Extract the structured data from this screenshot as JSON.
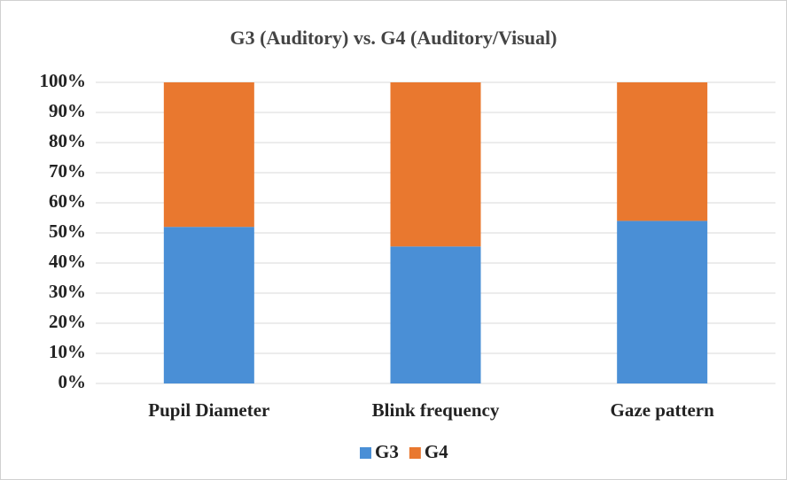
{
  "chart_data": {
    "type": "stacked_bar",
    "title": "G3 (Auditory) vs. G4 (Auditory/Visual)",
    "categories": [
      "Pupil Diameter",
      "Blink frequency",
      "Gaze pattern"
    ],
    "series": [
      {
        "name": "G3",
        "color": "#4a8fd6",
        "values": [
          52,
          45.5,
          54
        ]
      },
      {
        "name": "G4",
        "color": "#e9782f",
        "values": [
          48,
          54.5,
          46
        ]
      }
    ],
    "ylim": [
      0,
      100
    ],
    "yticks": [
      {
        "value": 0,
        "label": "0%"
      },
      {
        "value": 10,
        "label": "10%"
      },
      {
        "value": 20,
        "label": "20%"
      },
      {
        "value": 30,
        "label": "30%"
      },
      {
        "value": 40,
        "label": "40%"
      },
      {
        "value": 50,
        "label": "50%"
      },
      {
        "value": 60,
        "label": "60%"
      },
      {
        "value": 70,
        "label": "70%"
      },
      {
        "value": 80,
        "label": "80%"
      },
      {
        "value": 90,
        "label": "90%"
      },
      {
        "value": 100,
        "label": "100%"
      }
    ],
    "grid": true,
    "legend": "bottom"
  }
}
